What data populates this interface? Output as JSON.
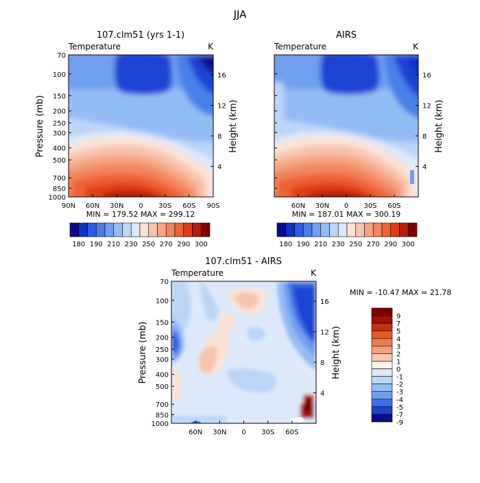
{
  "figure": {
    "title": "JJA"
  },
  "chart_data": [
    {
      "type": "heatmap",
      "title": "107.clm51 (yrs 1-1)",
      "variable": "Temperature",
      "units": "K",
      "ylabel_left": "Pressure (mb)",
      "ylabel_right": "Height (km)",
      "pressure_ticks": [
        "70",
        "100",
        "150",
        "200",
        "250",
        "300",
        "400",
        "500",
        "700",
        "850",
        "1000"
      ],
      "height_ticks": [
        "16",
        "12",
        "8",
        "4"
      ],
      "lat_ticks": [
        "90N",
        "60N",
        "30N",
        "0",
        "30S",
        "60S",
        "90S"
      ],
      "minmax": "MIN = 179.52   MAX = 299.12",
      "colorbar_labels": [
        "180",
        "190",
        "210",
        "230",
        "250",
        "270",
        "290",
        "300"
      ],
      "grid": false
    },
    {
      "type": "heatmap",
      "title": "AIRS",
      "variable": "Temperature",
      "units": "K",
      "ylabel_left": "Pressure (mb)",
      "ylabel_right": "Height (km)",
      "pressure_ticks": [
        "70",
        "100",
        "150",
        "200",
        "250",
        "300",
        "400",
        "500",
        "700",
        "850",
        "1000"
      ],
      "height_ticks": [
        "16",
        "12",
        "8",
        "4"
      ],
      "lat_ticks": [
        "60N",
        "30N",
        "0",
        "30S",
        "60S"
      ],
      "minmax": "MIN = 187.01   MAX = 300.19",
      "colorbar_labels": [
        "180",
        "190",
        "210",
        "230",
        "250",
        "270",
        "290",
        "300"
      ],
      "grid": false
    },
    {
      "type": "heatmap",
      "title": "107.clm51 - AIRS",
      "variable": "Temperature",
      "units": "K",
      "ylabel_left": "Pressure (mb)",
      "ylabel_right": "Height (km)",
      "pressure_ticks": [
        "70",
        "100",
        "150",
        "200",
        "250",
        "300",
        "400",
        "500",
        "700",
        "850",
        "1000"
      ],
      "height_ticks": [
        "16",
        "12",
        "8",
        "4"
      ],
      "lat_ticks": [
        "60N",
        "30N",
        "0",
        "30S",
        "60S"
      ],
      "minmax": "MIN = -10.47   MAX =  21.78",
      "colorbar_labels": [
        "9",
        "7",
        "5",
        "4",
        "3",
        "2",
        "1",
        "0",
        "-1",
        "-2",
        "-3",
        "-4",
        "-5",
        "-7",
        "-9"
      ],
      "grid": false
    }
  ],
  "colors": {
    "abs_scale": [
      "#0a0a8c",
      "#1030c8",
      "#2a5ae6",
      "#4a7fe8",
      "#6f9ff0",
      "#94bcf4",
      "#bcd6f8",
      "#dde9fb",
      "#fbe2d6",
      "#f8c4ad",
      "#f5a585",
      "#f2845e",
      "#ee6235",
      "#e23d12",
      "#b81c0a",
      "#800000"
    ],
    "diff_scale": [
      "#800000",
      "#a00f08",
      "#c5300c",
      "#e55a2a",
      "#f07a50",
      "#f4a080",
      "#f8c8b0",
      "#fdf0e8",
      "#dde9fb",
      "#bcd6f8",
      "#94bcf4",
      "#6f9ff0",
      "#3e70e4",
      "#1a42d2",
      "#0a0a8c"
    ]
  }
}
